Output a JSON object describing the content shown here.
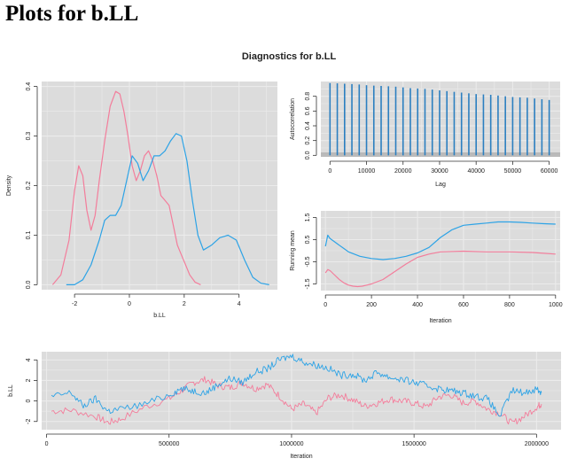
{
  "page": {
    "title": "Plots for b.LL",
    "figure_title": "Diagnostics for b.LL"
  },
  "colors": {
    "panel_bg": "#dcdcdc",
    "grid": "#ebebeb",
    "chain1": "#f37d9b",
    "chain2": "#2da3e6",
    "acf": "#2b7fc0",
    "acf_band": "#a9a9a9"
  },
  "chart_data": [
    {
      "type": "line",
      "panel": "density",
      "xlabel": "b.LL",
      "ylabel": "Density",
      "xlim": [
        -3.2,
        5.4
      ],
      "ylim": [
        -0.01,
        0.41
      ],
      "xticks": [
        -2,
        0,
        2,
        4
      ],
      "xtick_labels": [
        "-2",
        "0",
        "2",
        "4"
      ],
      "yticks": [
        0.0,
        0.1,
        0.2,
        0.3,
        0.4
      ],
      "ytick_labels": [
        "0.0",
        "0.1",
        "0.2",
        "0.3",
        "0.4"
      ],
      "grid": true,
      "series": [
        {
          "color": "#f37d9b",
          "x": [
            -2.8,
            -2.5,
            -2.2,
            -2.0,
            -1.85,
            -1.7,
            -1.55,
            -1.4,
            -1.25,
            -1.1,
            -0.9,
            -0.7,
            -0.5,
            -0.35,
            -0.2,
            -0.05,
            0.1,
            0.25,
            0.4,
            0.55,
            0.7,
            0.85,
            1.0,
            1.15,
            1.3,
            1.45,
            1.6,
            1.75,
            1.9,
            2.05,
            2.2,
            2.4,
            2.6
          ],
          "y": [
            0.0,
            0.02,
            0.09,
            0.19,
            0.24,
            0.22,
            0.15,
            0.11,
            0.14,
            0.21,
            0.29,
            0.36,
            0.39,
            0.385,
            0.35,
            0.3,
            0.24,
            0.21,
            0.23,
            0.26,
            0.27,
            0.25,
            0.22,
            0.18,
            0.17,
            0.16,
            0.12,
            0.08,
            0.06,
            0.04,
            0.02,
            0.005,
            0.0
          ]
        },
        {
          "color": "#2da3e6",
          "x": [
            -2.3,
            -2.0,
            -1.7,
            -1.4,
            -1.1,
            -0.9,
            -0.7,
            -0.5,
            -0.3,
            -0.1,
            0.1,
            0.3,
            0.5,
            0.7,
            0.9,
            1.1,
            1.3,
            1.5,
            1.7,
            1.9,
            2.1,
            2.3,
            2.5,
            2.7,
            3.0,
            3.3,
            3.6,
            3.9,
            4.2,
            4.5,
            4.8,
            5.1
          ],
          "y": [
            0.0,
            0.0,
            0.01,
            0.04,
            0.09,
            0.13,
            0.14,
            0.14,
            0.16,
            0.21,
            0.26,
            0.245,
            0.21,
            0.23,
            0.26,
            0.26,
            0.27,
            0.29,
            0.305,
            0.3,
            0.25,
            0.17,
            0.1,
            0.07,
            0.08,
            0.095,
            0.1,
            0.09,
            0.05,
            0.015,
            0.003,
            0.0
          ]
        }
      ]
    },
    {
      "type": "bar",
      "panel": "acf",
      "xlabel": "Lag",
      "ylabel": "Autocorrelation",
      "xlim": [
        -2500,
        63000
      ],
      "ylim": [
        -0.02,
        1.0
      ],
      "xticks": [
        0,
        10000,
        20000,
        30000,
        40000,
        50000,
        60000
      ],
      "xtick_labels": [
        "0",
        "10000",
        "20000",
        "30000",
        "40000",
        "50000",
        "60000"
      ],
      "yticks": [
        0.0,
        0.2,
        0.4,
        0.6,
        0.8
      ],
      "ytick_labels": [
        "0.0",
        "0.2",
        "0.4",
        "0.6",
        "0.8"
      ],
      "confidence_band": [
        -0.02,
        0.04
      ],
      "grid": true,
      "x": [
        0,
        2000,
        4000,
        6000,
        8000,
        10000,
        12000,
        14000,
        16000,
        18000,
        20000,
        22000,
        24000,
        26000,
        28000,
        30000,
        32000,
        34000,
        36000,
        38000,
        40000,
        42000,
        44000,
        46000,
        48000,
        50000,
        52000,
        54000,
        56000,
        58000,
        60000
      ],
      "values": [
        0.98,
        0.975,
        0.97,
        0.965,
        0.96,
        0.95,
        0.945,
        0.94,
        0.935,
        0.93,
        0.92,
        0.91,
        0.905,
        0.9,
        0.89,
        0.88,
        0.87,
        0.86,
        0.85,
        0.84,
        0.83,
        0.825,
        0.82,
        0.81,
        0.8,
        0.79,
        0.785,
        0.78,
        0.77,
        0.76,
        0.75
      ]
    },
    {
      "type": "line",
      "panel": "running-mean",
      "xlabel": "Iteration",
      "ylabel": "Running mean",
      "xlim": [
        -20,
        1020
      ],
      "ylim": [
        -1.8,
        1.8
      ],
      "xticks": [
        0,
        200,
        400,
        600,
        800,
        1000
      ],
      "xtick_labels": [
        "0",
        "200",
        "400",
        "600",
        "800",
        "1000"
      ],
      "yticks": [
        -1.5,
        -0.5,
        0.5,
        1.5
      ],
      "ytick_labels": [
        "-1.5",
        "-0.5",
        "0.5",
        "1.5"
      ],
      "grid": true,
      "series": [
        {
          "color": "#f37d9b",
          "x": [
            0,
            10,
            20,
            40,
            60,
            80,
            100,
            120,
            140,
            160,
            180,
            200,
            250,
            300,
            350,
            400,
            450,
            500,
            600,
            700,
            800,
            900,
            1000
          ],
          "y": [
            -1.0,
            -0.85,
            -0.9,
            -1.1,
            -1.3,
            -1.45,
            -1.55,
            -1.6,
            -1.62,
            -1.6,
            -1.55,
            -1.5,
            -1.3,
            -0.95,
            -0.6,
            -0.3,
            -0.15,
            -0.05,
            -0.02,
            -0.05,
            -0.05,
            -0.08,
            -0.15
          ]
        },
        {
          "color": "#2da3e6",
          "x": [
            0,
            10,
            20,
            40,
            60,
            80,
            100,
            150,
            200,
            250,
            300,
            350,
            400,
            450,
            500,
            550,
            600,
            650,
            700,
            750,
            800,
            850,
            900,
            950,
            1000
          ],
          "y": [
            0.2,
            0.7,
            0.55,
            0.4,
            0.25,
            0.1,
            -0.05,
            -0.25,
            -0.35,
            -0.4,
            -0.35,
            -0.25,
            -0.1,
            0.15,
            0.6,
            0.95,
            1.15,
            1.2,
            1.25,
            1.3,
            1.3,
            1.28,
            1.25,
            1.22,
            1.2
          ]
        }
      ]
    },
    {
      "type": "line",
      "panel": "trace",
      "xlabel": "Iteration",
      "ylabel": "b.LL",
      "xlim": [
        -20000,
        2100000
      ],
      "ylim": [
        -2.8,
        4.8
      ],
      "xticks": [
        0,
        500000,
        1000000,
        1500000,
        2000000
      ],
      "xtick_labels": [
        "0",
        "500000",
        "1000000",
        "1500000",
        "2000000"
      ],
      "yticks": [
        -2,
        0,
        2,
        4
      ],
      "ytick_labels": [
        "-2",
        "0",
        "2",
        "4"
      ],
      "grid": true,
      "series": [
        {
          "color": "#f37d9b",
          "x": [
            20000,
            100000,
            200000,
            250000,
            300000,
            400000,
            500000,
            550000,
            600000,
            650000,
            700000,
            750000,
            800000,
            850000,
            900000,
            950000,
            1000000,
            1050000,
            1100000,
            1150000,
            1200000,
            1250000,
            1300000,
            1350000,
            1400000,
            1450000,
            1500000,
            1550000,
            1600000,
            1650000,
            1700000,
            1750000,
            1800000,
            1850000,
            1900000,
            1950000,
            2000000,
            2020000
          ],
          "y": [
            -1.0,
            -0.9,
            -1.5,
            -2.1,
            -1.8,
            -0.6,
            0.2,
            1.0,
            1.8,
            2.1,
            1.5,
            1.3,
            1.8,
            1.2,
            1.6,
            0.5,
            -0.8,
            -0.3,
            -1.2,
            0.3,
            0.6,
            0.1,
            -0.5,
            -0.2,
            0.2,
            0.0,
            -0.2,
            -0.6,
            0.4,
            0.6,
            -0.2,
            0.0,
            -0.8,
            -1.2,
            -2.2,
            -1.5,
            -0.6,
            -0.3
          ]
        },
        {
          "color": "#2da3e6",
          "x": [
            20000,
            100000,
            150000,
            200000,
            250000,
            300000,
            400000,
            500000,
            550000,
            600000,
            650000,
            700000,
            750000,
            800000,
            850000,
            900000,
            950000,
            1000000,
            1050000,
            1100000,
            1150000,
            1200000,
            1250000,
            1300000,
            1350000,
            1400000,
            1450000,
            1500000,
            1550000,
            1600000,
            1650000,
            1700000,
            1750000,
            1800000,
            1850000,
            1900000,
            1950000,
            2000000,
            2020000
          ],
          "y": [
            0.4,
            0.8,
            -0.5,
            0.2,
            -1.0,
            -0.8,
            -0.3,
            0.6,
            1.2,
            1.0,
            0.8,
            1.6,
            2.2,
            1.8,
            2.8,
            3.1,
            4.0,
            4.4,
            3.8,
            3.5,
            3.2,
            2.5,
            2.6,
            2.0,
            2.8,
            2.3,
            2.1,
            1.8,
            1.5,
            1.2,
            1.0,
            0.8,
            0.5,
            0.2,
            -1.5,
            1.0,
            0.8,
            1.2,
            0.8
          ]
        }
      ]
    }
  ]
}
